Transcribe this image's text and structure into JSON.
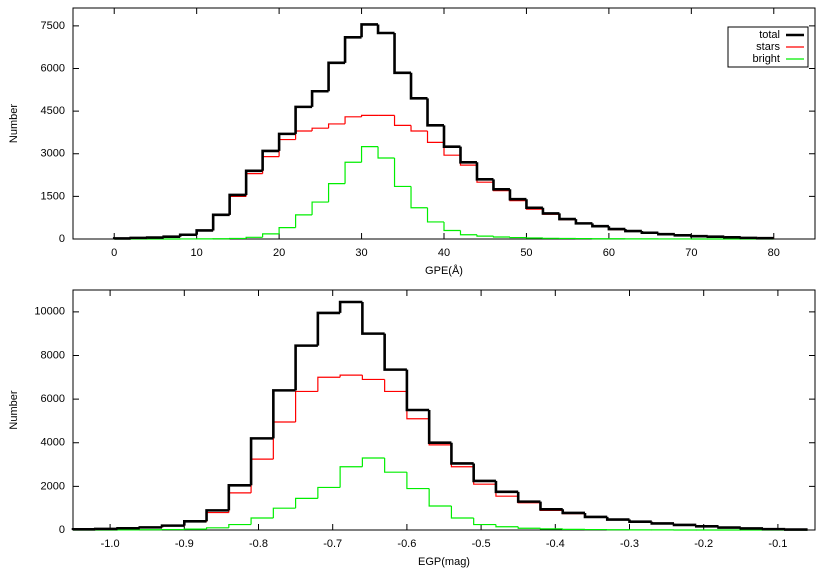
{
  "chart_data": [
    {
      "type": "histogram",
      "xlabel": "GPE(Å)",
      "ylabel": "Number",
      "bins": [
        0,
        2,
        4,
        6,
        8,
        10,
        12,
        14,
        16,
        18,
        20,
        22,
        24,
        26,
        28,
        30,
        32,
        34,
        36,
        38,
        40,
        42,
        44,
        46,
        48,
        50,
        52,
        54,
        56,
        58,
        60,
        62,
        64,
        66,
        68,
        70,
        72,
        74,
        76,
        78,
        80
      ],
      "series": [
        {
          "name": "total",
          "color": "#000000",
          "values": [
            20,
            40,
            50,
            80,
            150,
            300,
            850,
            1550,
            2400,
            3100,
            3700,
            4650,
            5200,
            6200,
            7100,
            7550,
            7250,
            5850,
            4950,
            4000,
            3250,
            2700,
            2100,
            1750,
            1400,
            1100,
            900,
            700,
            550,
            450,
            350,
            280,
            220,
            170,
            130,
            100,
            80,
            60,
            40,
            30
          ]
        },
        {
          "name": "stars",
          "color": "#ff0000",
          "values": [
            20,
            40,
            50,
            80,
            150,
            300,
            850,
            1500,
            2300,
            2900,
            3500,
            3800,
            3900,
            4050,
            4300,
            4350,
            4350,
            4000,
            3800,
            3400,
            2950,
            2600,
            2000,
            1700,
            1350,
            1050,
            870,
            680,
            530,
            430,
            330,
            270,
            210,
            160,
            120,
            95,
            75,
            55,
            38,
            28
          ]
        },
        {
          "name": "bright",
          "color": "#00ee00",
          "values": [
            0,
            0,
            0,
            0,
            2,
            5,
            10,
            20,
            60,
            180,
            400,
            850,
            1300,
            1950,
            2700,
            3250,
            2850,
            1850,
            1100,
            600,
            300,
            150,
            100,
            70,
            50,
            35,
            25,
            20,
            15,
            10,
            8,
            5,
            4,
            3,
            2,
            1,
            1,
            0,
            0,
            0
          ]
        }
      ],
      "xlim": [
        -5,
        85
      ],
      "xticks": [
        0,
        10,
        20,
        30,
        40,
        50,
        60,
        70,
        80
      ],
      "ylim": [
        0,
        8130
      ],
      "yticks": [
        0,
        1500,
        3000,
        4500,
        6000,
        7500
      ],
      "legend": "upper right"
    },
    {
      "type": "histogram",
      "xlabel": "EGP(mag)",
      "ylabel": "Number",
      "bins": [
        -1.05,
        -1.02,
        -0.99,
        -0.96,
        -0.93,
        -0.9,
        -0.87,
        -0.84,
        -0.81,
        -0.78,
        -0.75,
        -0.72,
        -0.69,
        -0.66,
        -0.63,
        -0.6,
        -0.57,
        -0.54,
        -0.51,
        -0.48,
        -0.45,
        -0.42,
        -0.39,
        -0.36,
        -0.33,
        -0.3,
        -0.27,
        -0.24,
        -0.21,
        -0.18,
        -0.15,
        -0.12,
        -0.09,
        -0.06
      ],
      "series": [
        {
          "color": "#000000",
          "values": [
            30,
            50,
            80,
            120,
            200,
            400,
            900,
            2050,
            4200,
            6400,
            8450,
            9950,
            10450,
            9000,
            7350,
            5500,
            4000,
            3050,
            2250,
            1750,
            1300,
            950,
            780,
            600,
            480,
            380,
            300,
            230,
            170,
            110,
            70,
            40,
            20
          ]
        },
        {
          "color": "#ff0000",
          "values": [
            30,
            50,
            80,
            110,
            190,
            380,
            800,
            1700,
            3250,
            4950,
            6350,
            7000,
            7100,
            6900,
            6350,
            5100,
            3900,
            2900,
            2100,
            1550,
            1250,
            900,
            750,
            580,
            470,
            370,
            290,
            220,
            160,
            100,
            65,
            40,
            20
          ]
        },
        {
          "color": "#00ee00",
          "values": [
            0,
            0,
            5,
            10,
            20,
            40,
            100,
            250,
            550,
            1000,
            1450,
            1950,
            2900,
            3300,
            2650,
            1900,
            1100,
            550,
            250,
            150,
            80,
            50,
            30,
            20,
            10,
            5,
            5,
            0,
            0,
            0,
            0,
            0,
            0
          ]
        }
      ],
      "xlim": [
        -1.05,
        -0.05
      ],
      "xticks": [
        {
          "value": -1,
          "label": "-1.0"
        },
        -0.9,
        -0.8,
        -0.7,
        -0.6,
        -0.5,
        -0.4,
        -0.3,
        -0.2,
        -0.1
      ],
      "ylim": [
        0,
        11000
      ],
      "yticks": [
        0,
        2000,
        4000,
        6000,
        8000,
        10000
      ]
    }
  ]
}
